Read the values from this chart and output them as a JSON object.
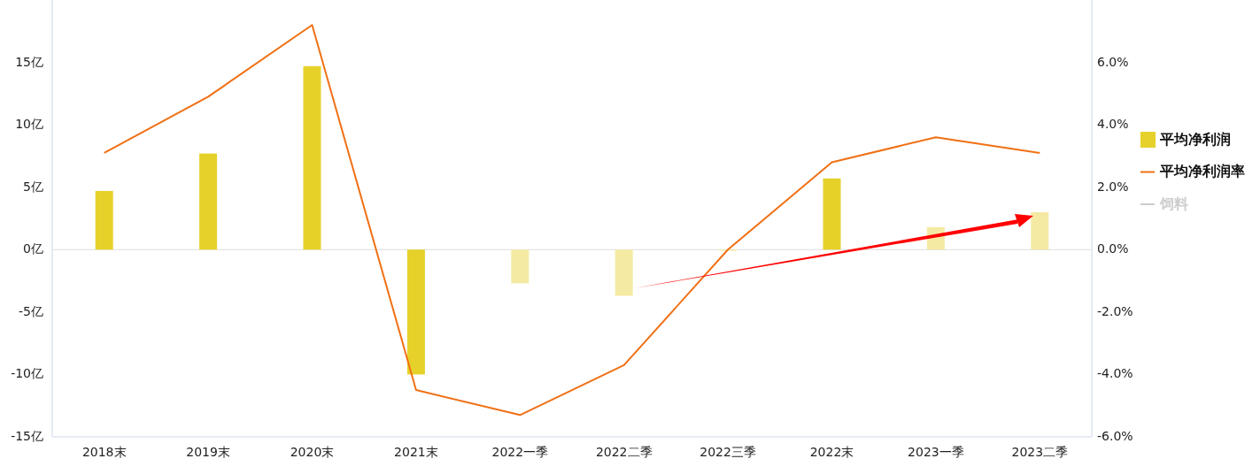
{
  "chart_data": {
    "type": "bar",
    "categories": [
      "2018末",
      "2019末",
      "2020末",
      "2021末",
      "2022一季",
      "2022二季",
      "2022三季",
      "2022末",
      "2023一季",
      "2023二季"
    ],
    "series": [
      {
        "name": "平均净利润",
        "color": "#e6d12a",
        "colors": [
          "#e6d12a",
          "#e6d12a",
          "#e6d12a",
          "#e6d12a",
          "#f5eaa3",
          "#f5eaa3",
          "#f5eaa3",
          "#e6d12a",
          "#f5eaa3",
          "#f5eaa3"
        ],
        "values": [
          4.7,
          7.7,
          14.7,
          -10.0,
          -2.7,
          -3.7,
          -0.1,
          5.7,
          1.8,
          3.0
        ]
      },
      {
        "name": "平均净利润率",
        "type": "line",
        "axis": "y2",
        "color": "#f07014",
        "values": [
          3.1,
          4.9,
          7.2,
          -4.5,
          -5.3,
          -3.7,
          0.0,
          2.8,
          3.6,
          3.1
        ]
      },
      {
        "name": "饲料",
        "type": "line",
        "color": "#cccccc",
        "values": [
          null,
          null,
          null,
          null,
          null,
          null,
          null,
          null,
          null,
          null
        ]
      }
    ],
    "ylim": [
      -15,
      20
    ],
    "yticks": [
      {
        "value": -15,
        "label": "-15亿"
      },
      {
        "value": -10,
        "label": "-10亿"
      },
      {
        "value": -5,
        "label": "-5亿"
      },
      {
        "value": 0,
        "label": "0亿"
      },
      {
        "value": 5,
        "label": "5亿"
      },
      {
        "value": 10,
        "label": "10亿"
      },
      {
        "value": 15,
        "label": "15亿"
      }
    ],
    "y2lim": [
      -6,
      8
    ],
    "y2ticks": [
      {
        "value": -6,
        "label": "-6.0%"
      },
      {
        "value": -4,
        "label": "-4.0%"
      },
      {
        "value": -2,
        "label": "-2.0%"
      },
      {
        "value": 0,
        "label": "0.0%"
      },
      {
        "value": 2,
        "label": "2.0%"
      },
      {
        "value": 4,
        "label": "4.0%"
      },
      {
        "value": 6,
        "label": "6.0%"
      }
    ],
    "legend": "right"
  }
}
